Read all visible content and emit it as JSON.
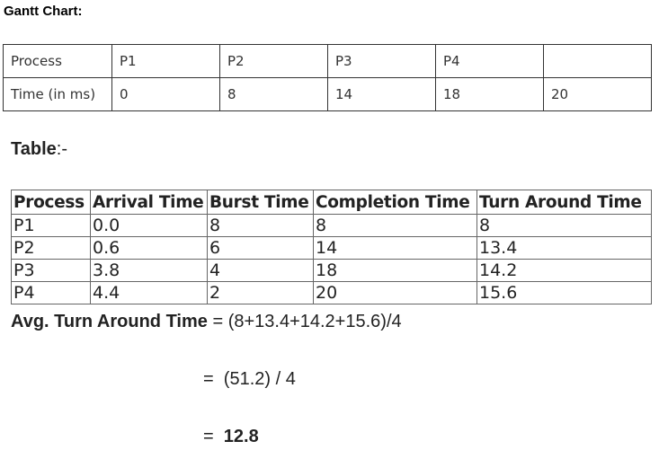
{
  "gantt": {
    "heading": "Gantt Chart:",
    "row_process": [
      "Process",
      "P1",
      "P2",
      "P3",
      "P4",
      ""
    ],
    "row_time": [
      "Time (in ms)",
      "0",
      "8",
      "14",
      "18",
      "20"
    ]
  },
  "table_section": {
    "heading_bold": "Table",
    "heading_suffix": ":-",
    "headers": [
      "Process",
      "Arrival Time",
      "Burst Time",
      "Completion Time",
      "Turn Around Time"
    ],
    "rows": [
      [
        "P1",
        "0.0",
        "8",
        "8",
        "8"
      ],
      [
        "P2",
        "0.6",
        "6",
        "14",
        "13.4"
      ],
      [
        "P3",
        "3.8",
        "4",
        "18",
        "14.2"
      ],
      [
        "P4",
        "4.4",
        "2",
        "20",
        "15.6"
      ]
    ]
  },
  "average": {
    "label": "Avg. Turn Around Time",
    "equals": " = ",
    "expression": "(8+13.4+14.2+15.6)/4",
    "step1": "=  (51.2) / 4",
    "step2_prefix": "=  ",
    "result": "12.8"
  }
}
